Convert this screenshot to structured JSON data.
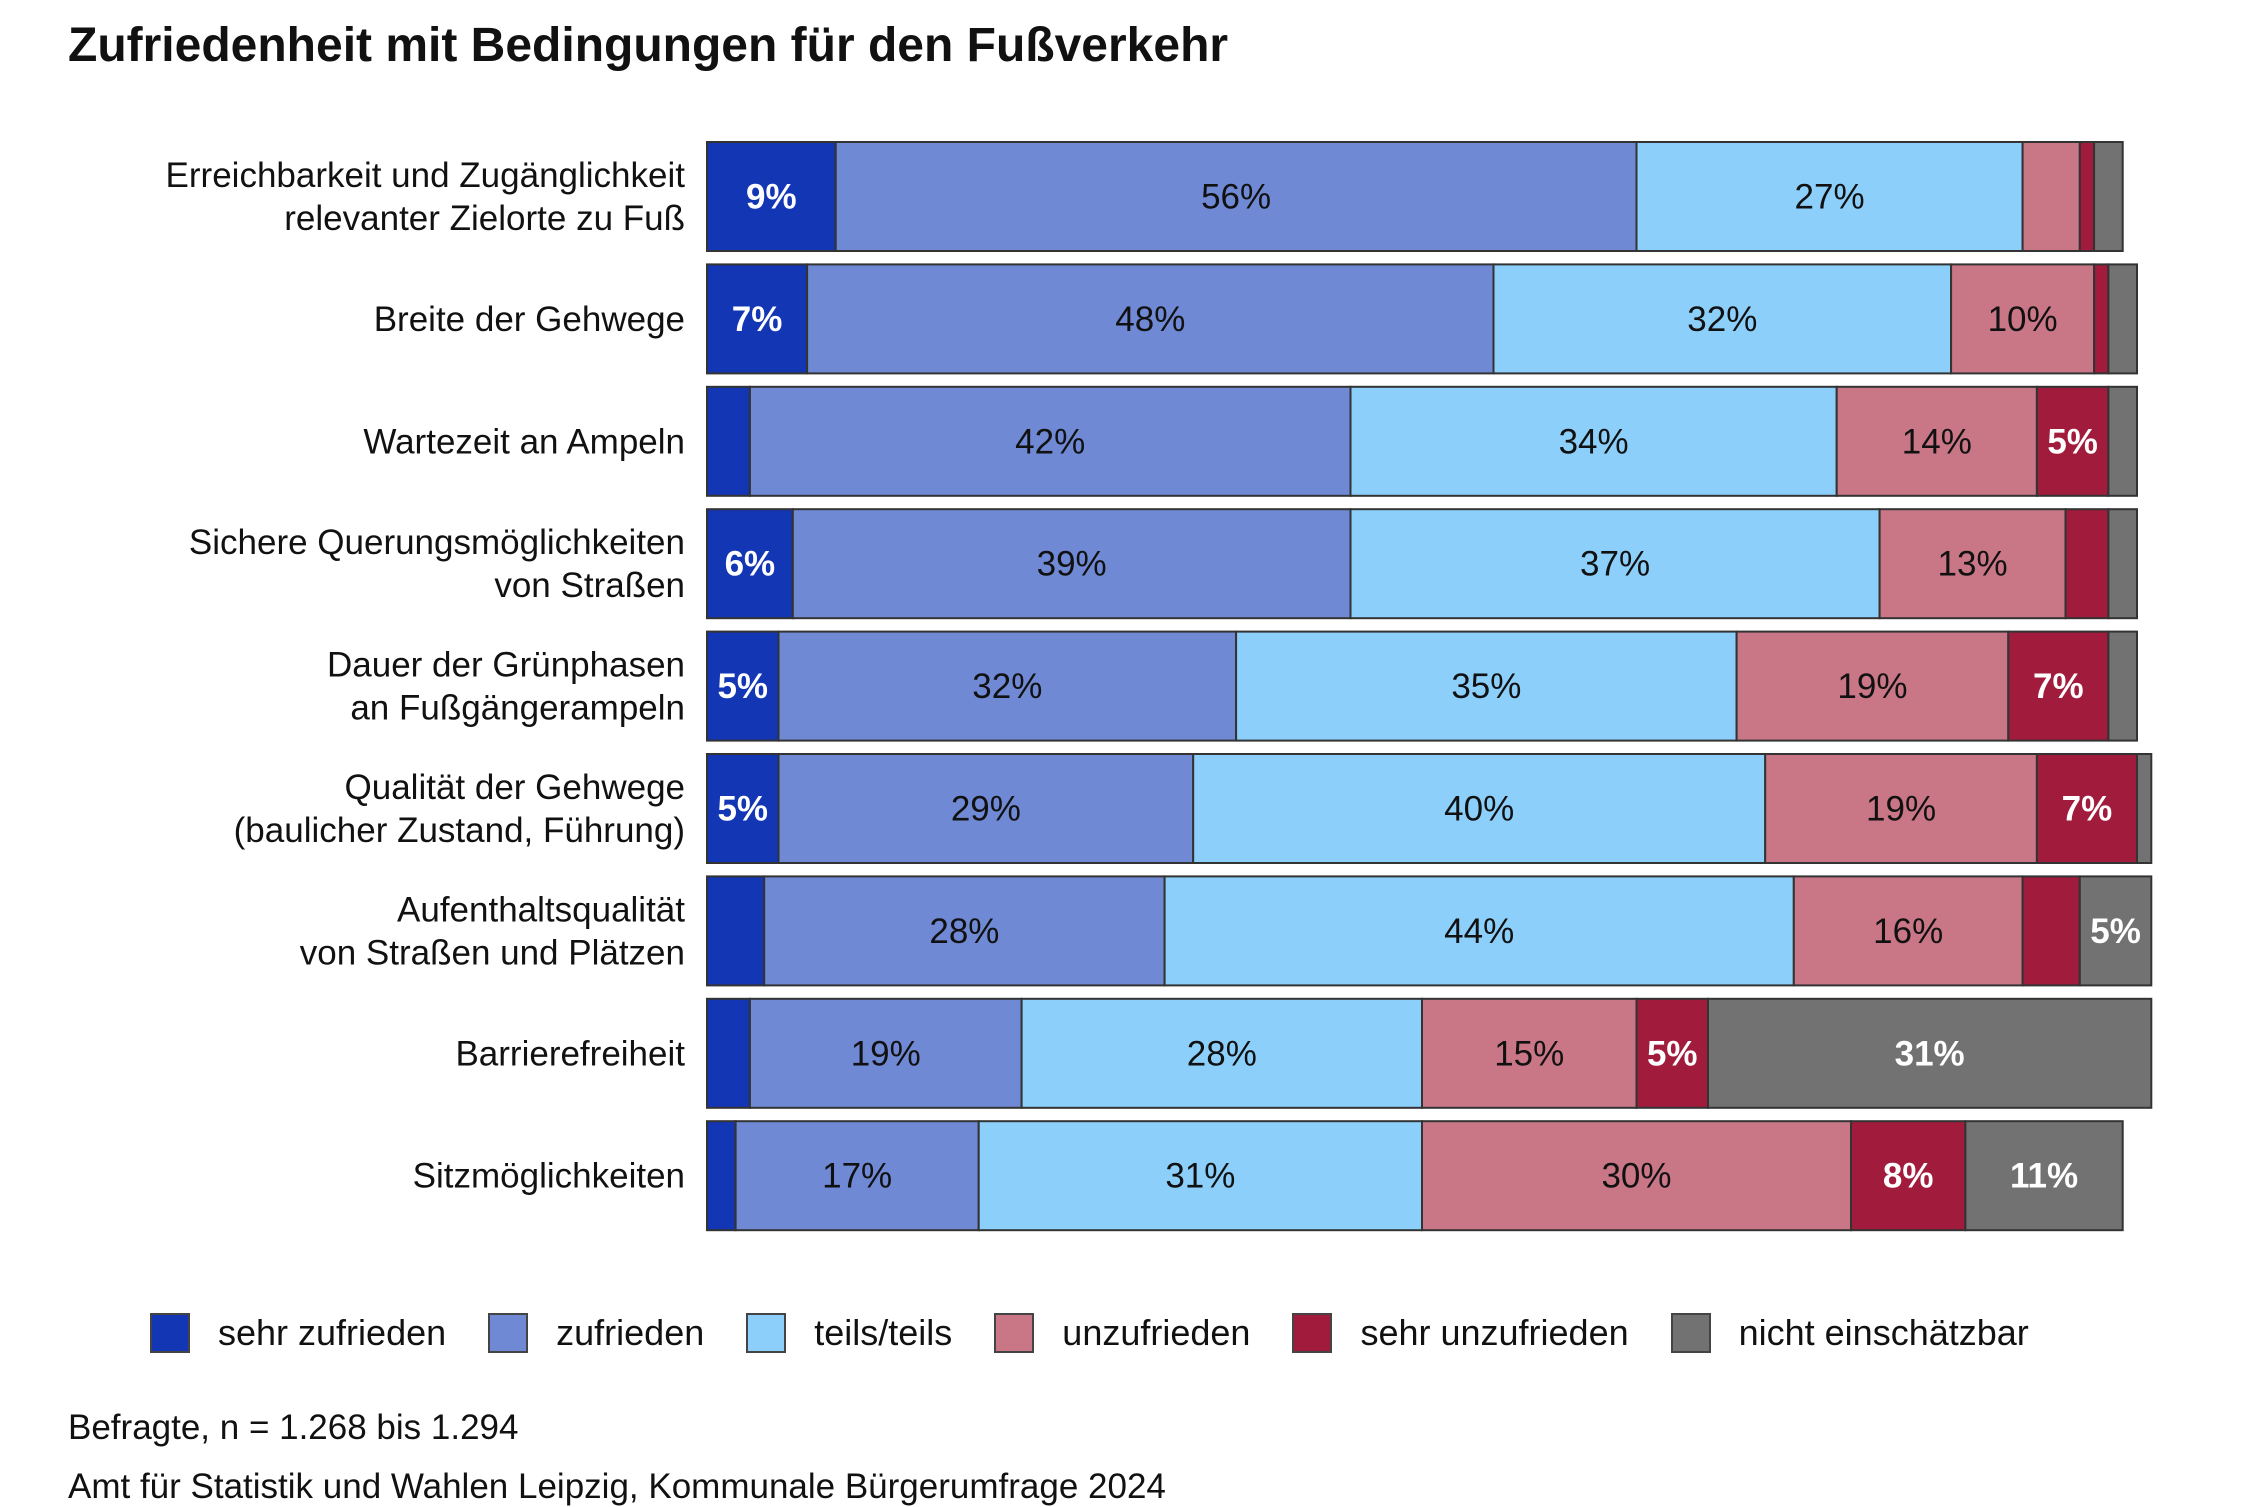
{
  "title": "Zufriedenheit mit Bedingungen für den Fußverkehr",
  "chart_data": {
    "type": "bar",
    "orientation": "horizontal",
    "stacked": true,
    "title": "Zufriedenheit mit Bedingungen für den Fußverkehr",
    "xlim": [
      0,
      100
    ],
    "categories": [
      [
        "Erreichbarkeit und Zugänglichkeit",
        "relevanter Zielorte zu Fuß"
      ],
      [
        "Breite der Gehwege"
      ],
      [
        "Wartezeit an Ampeln"
      ],
      [
        "Sichere Querungsmöglichkeiten",
        "von Straßen"
      ],
      [
        "Dauer der Grünphasen",
        "an Fußgängerampeln"
      ],
      [
        "Qualität der Gehwege",
        "(baulicher Zustand, Führung)"
      ],
      [
        "Aufenthaltsqualität",
        "von Straßen und Plätzen"
      ],
      [
        "Barrierefreiheit"
      ],
      [
        "Sitzmöglichkeiten"
      ]
    ],
    "series": [
      {
        "name": "sehr zufrieden",
        "color": "#1336b5",
        "text": "#ffffff",
        "values": [
          9,
          7,
          3,
          6,
          5,
          5,
          4,
          3,
          2
        ]
      },
      {
        "name": "zufrieden",
        "color": "#6f89d5",
        "text": "#111111",
        "values": [
          56,
          48,
          42,
          39,
          32,
          29,
          28,
          19,
          17
        ]
      },
      {
        "name": "teils/teils",
        "color": "#8ccffb",
        "text": "#111111",
        "values": [
          27,
          32,
          34,
          37,
          35,
          40,
          44,
          28,
          31
        ]
      },
      {
        "name": "unzufrieden",
        "color": "#c97787",
        "text": "#111111",
        "values": [
          4,
          10,
          14,
          13,
          19,
          19,
          16,
          15,
          30
        ]
      },
      {
        "name": "sehr unzufrieden",
        "color": "#a11b3c",
        "text": "#ffffff",
        "values": [
          1,
          1,
          5,
          3,
          7,
          7,
          4,
          5,
          8
        ]
      },
      {
        "name": "nicht einschätzbar",
        "color": "#727272",
        "text": "#ffffff",
        "values": [
          2,
          2,
          2,
          2,
          2,
          1,
          5,
          31,
          11
        ]
      }
    ],
    "label_threshold": 5,
    "legend_position": "bottom"
  },
  "footer": {
    "respondents": "Befragte, n = 1.268 bis 1.294",
    "source": "Amt für Statistik und Wahlen Leipzig, Kommunale Bürgerumfrage 2024"
  }
}
